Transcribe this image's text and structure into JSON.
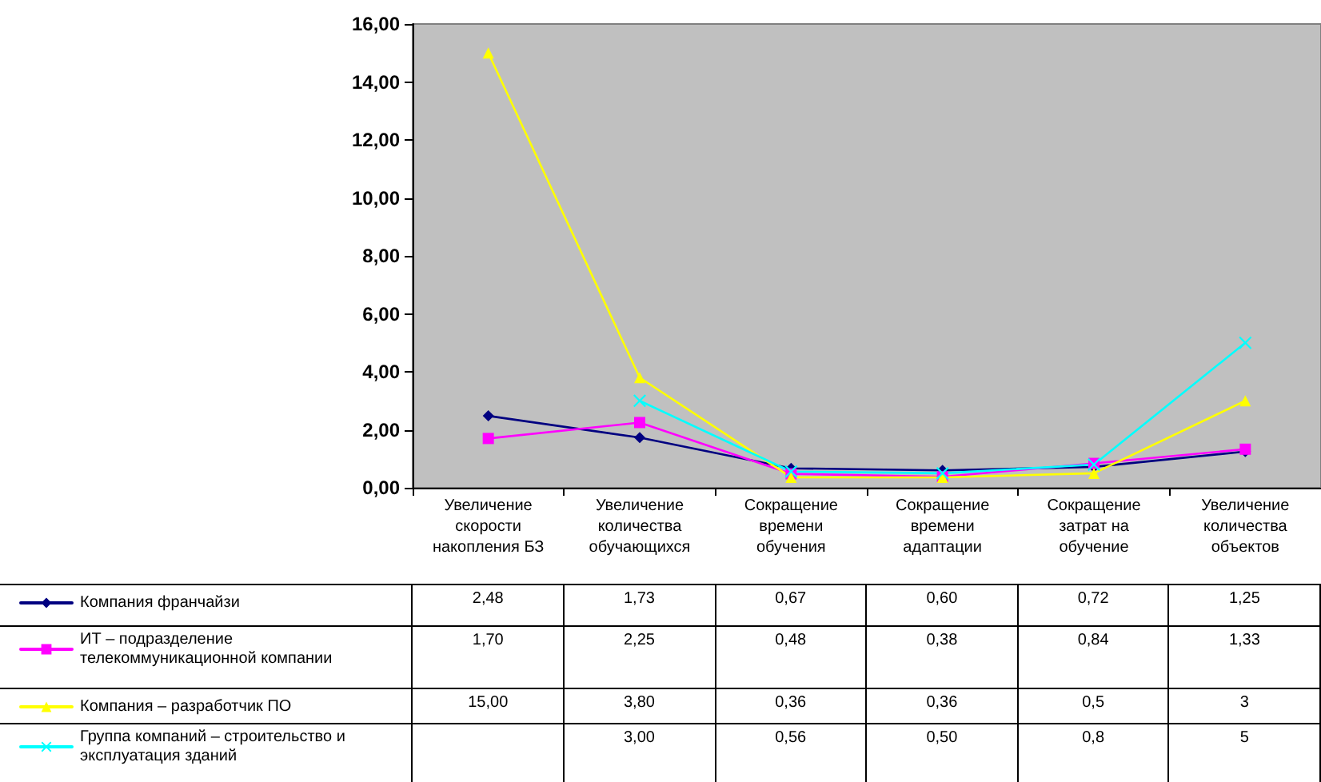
{
  "chart_data": {
    "type": "line",
    "categories": [
      "Увеличение скорости накопления БЗ",
      "Увеличение количества обучающихся",
      "Сокращение времени обучения",
      "Сокращение времени адаптации",
      "Сокращение затрат на обучение",
      "Увеличение количества объектов"
    ],
    "series": [
      {
        "name": "Компания франчайзи",
        "color": "#000080",
        "marker": "diamond",
        "values": [
          2.48,
          1.73,
          0.67,
          0.6,
          0.72,
          1.25
        ],
        "value_labels": [
          "2,48",
          "1,73",
          "0,67",
          "0,60",
          "0,72",
          "1,25"
        ]
      },
      {
        "name": "ИТ – подразделение телекоммуникационной компании",
        "color": "#ff00ff",
        "marker": "square",
        "values": [
          1.7,
          2.25,
          0.48,
          0.38,
          0.84,
          1.33
        ],
        "value_labels": [
          "1,70",
          "2,25",
          "0,48",
          "0,38",
          "0,84",
          "1,33"
        ]
      },
      {
        "name": "Компания – разработчик ПО",
        "color": "#ffff00",
        "marker": "triangle",
        "values": [
          15.0,
          3.8,
          0.36,
          0.36,
          0.5,
          3
        ],
        "value_labels": [
          "15,00",
          "3,80",
          "0,36",
          "0,36",
          "0,5",
          "3"
        ]
      },
      {
        "name": "Группа компаний – строительство и эксплуатация зданий",
        "color": "#00ffff",
        "marker": "cross",
        "values": [
          null,
          3.0,
          0.56,
          0.5,
          0.8,
          5
        ],
        "value_labels": [
          null,
          "3,00",
          "0,56",
          "0,50",
          "0,8",
          "5"
        ]
      }
    ],
    "ylim": [
      0,
      16
    ],
    "yticks": [
      {
        "value": 0,
        "label": "0,00"
      },
      {
        "value": 2,
        "label": "2,00"
      },
      {
        "value": 4,
        "label": "4,00"
      },
      {
        "value": 6,
        "label": "6,00"
      },
      {
        "value": 8,
        "label": "8,00"
      },
      {
        "value": 10,
        "label": "10,00"
      },
      {
        "value": 12,
        "label": "12,00"
      },
      {
        "value": 14,
        "label": "14,00"
      },
      {
        "value": 16,
        "label": "16,00"
      }
    ],
    "grid": false,
    "legend": "bottom left",
    "line_style": "solid"
  }
}
